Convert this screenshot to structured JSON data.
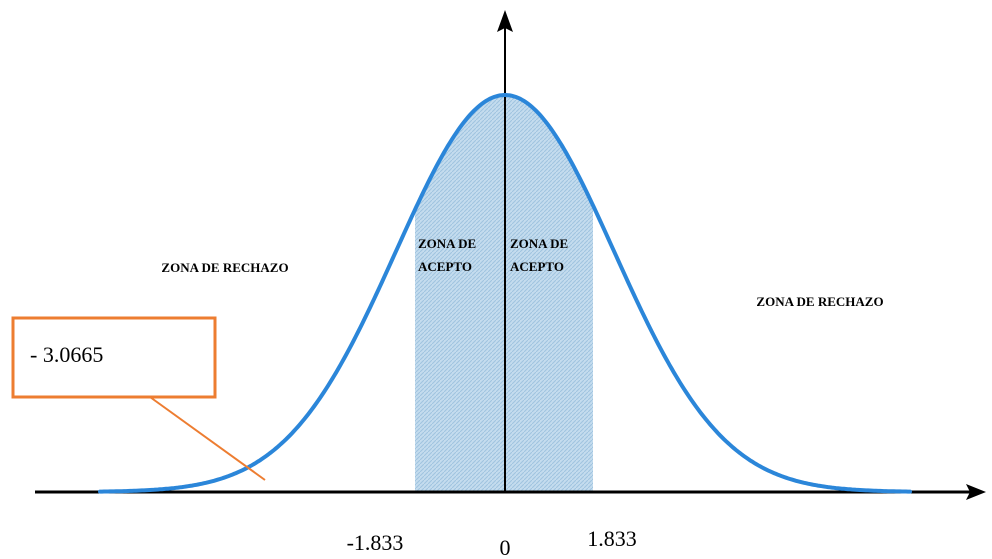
{
  "zones": {
    "left_rejection": "ZONA DE RECHAZO",
    "right_rejection": "ZONA DE RECHAZO",
    "left_acceptance": [
      "ZONA  DE",
      "ACEPTO"
    ],
    "right_acceptance": [
      "ZONA DE",
      "ACEPTO"
    ]
  },
  "callout": "- 3.0665",
  "axis_labels": {
    "left_critical": "-1.833",
    "center": "0",
    "right_critical": "1.833"
  }
}
